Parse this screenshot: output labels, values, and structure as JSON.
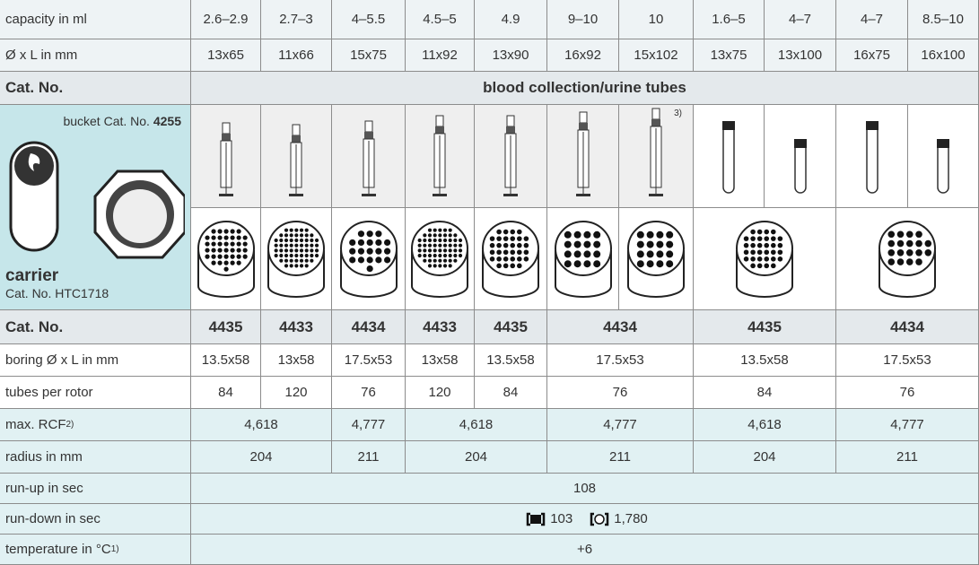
{
  "table": {
    "capacity": {
      "label": "capacity in ml",
      "cells": [
        "2.6–2.9",
        "2.7–3",
        "4–5.5",
        "4.5–5",
        "4.9",
        "9–10",
        "10",
        "1.6–5",
        "4–7",
        "4–7",
        "8.5–10"
      ]
    },
    "dimensions": {
      "label": "Ø x L in mm",
      "cells": [
        "13x65",
        "11x66",
        "15x75",
        "11x92",
        "13x90",
        "16x92",
        "15x102",
        "13x75",
        "13x100",
        "16x75",
        "16x100"
      ]
    },
    "group_header": {
      "label": "Cat. No.",
      "text": "blood collection/urine tubes"
    },
    "bucket": {
      "text": "bucket Cat. No.",
      "number": "4255"
    },
    "carrier": {
      "label": "carrier",
      "cat_text": "Cat. No.",
      "cat_number": "HTC1718"
    },
    "tube_footnote": "3)",
    "cat_no": {
      "label": "Cat. No.",
      "cells": [
        "4435",
        "4433",
        "4434",
        "4433",
        "4435",
        "4434",
        "4435",
        "4434"
      ]
    },
    "boring": {
      "label": "boring Ø x L in mm",
      "cells": [
        "13.5x58",
        "13x58",
        "17.5x53",
        "13x58",
        "13.5x58",
        "17.5x53",
        "13.5x58",
        "17.5x53"
      ]
    },
    "tubes_per_rotor": {
      "label": "tubes per rotor",
      "cells": [
        "84",
        "120",
        "76",
        "120",
        "84",
        "76",
        "84",
        "76"
      ]
    },
    "max_rcf": {
      "label": "max. RCF",
      "footnote": "2)",
      "cells": [
        "4,618",
        "4,777",
        "4,618",
        "4,777",
        "4,618",
        "4,777"
      ]
    },
    "radius": {
      "label": "radius in mm",
      "cells": [
        "204",
        "211",
        "204",
        "211",
        "204",
        "211"
      ]
    },
    "run_up": {
      "label": "run-up in sec",
      "cells": [
        "108"
      ]
    },
    "run_down": {
      "label": "run-down in sec",
      "values": [
        "103",
        "1,780"
      ]
    },
    "temperature": {
      "label": "temperature in °C",
      "footnote": "1)",
      "cells": [
        "+6"
      ]
    }
  }
}
